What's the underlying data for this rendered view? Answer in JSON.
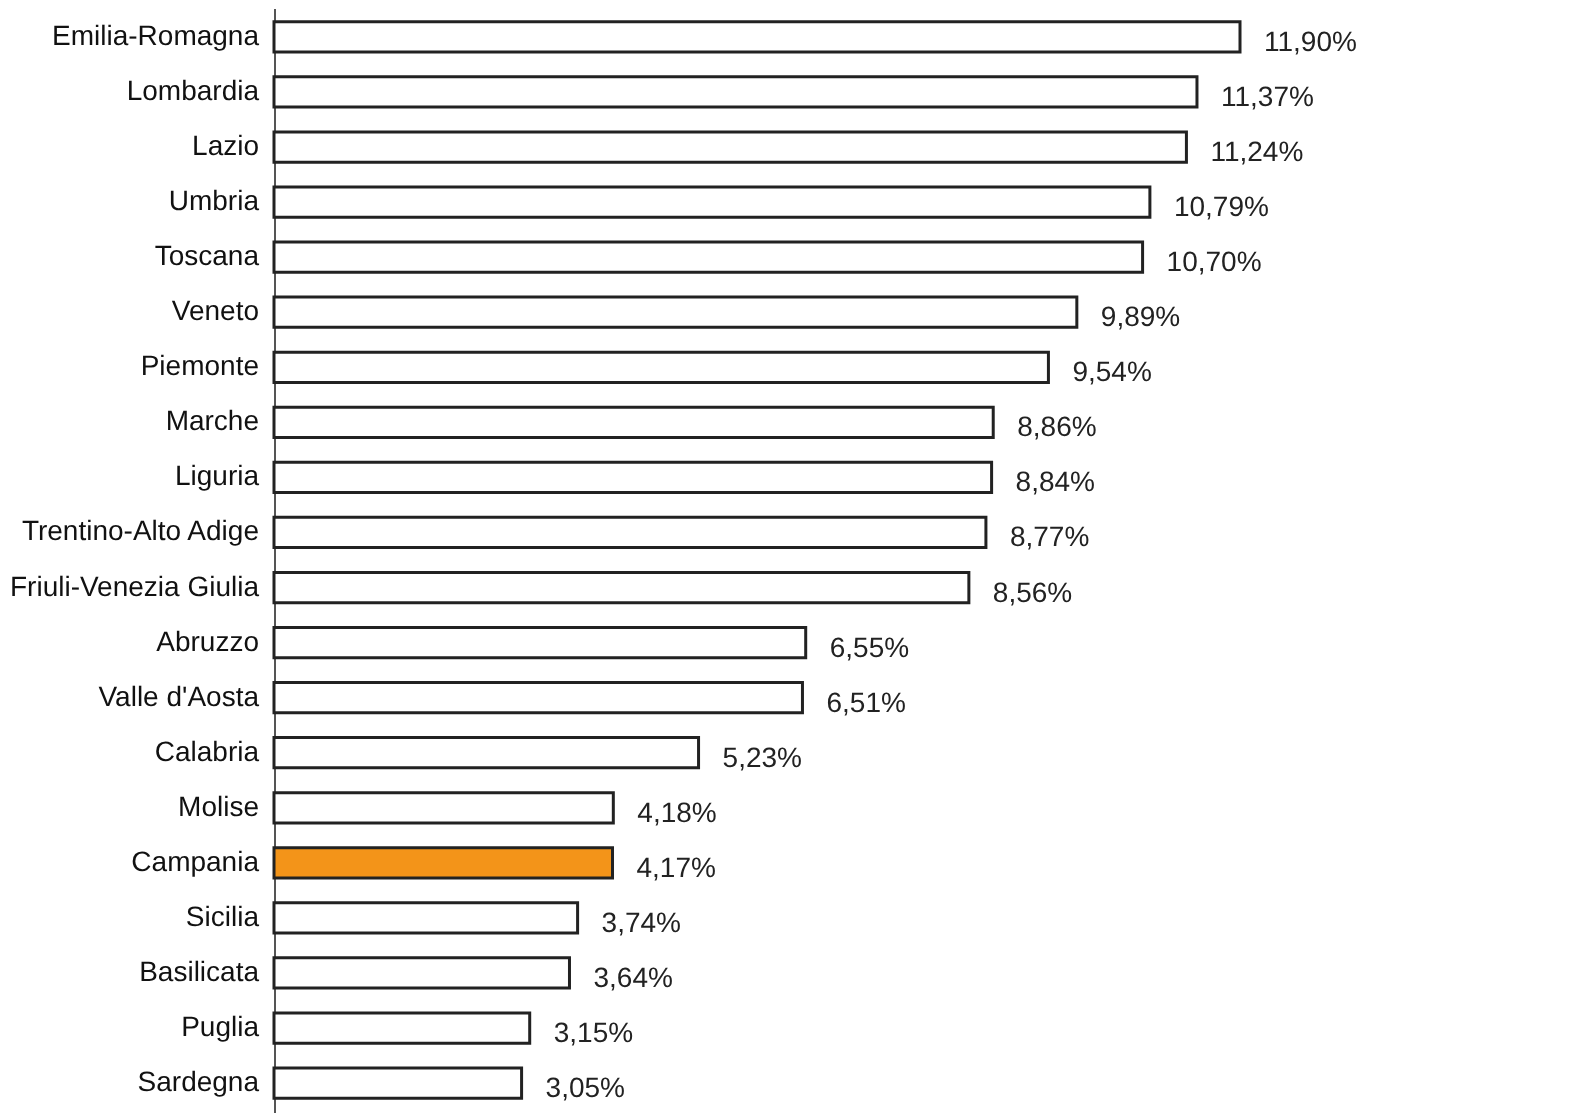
{
  "chart_data": {
    "type": "bar",
    "orientation": "horizontal",
    "categories": [
      "Emilia-Romagna",
      "Lombardia",
      "Lazio",
      "Umbria",
      "Toscana",
      "Veneto",
      "Piemonte",
      "Marche",
      "Liguria",
      "Trentino-Alto Adige",
      "Friuli-Venezia Giulia",
      "Abruzzo",
      "Valle d'Aosta",
      "Calabria",
      "Molise",
      "Campania",
      "Sicilia",
      "Basilicata",
      "Puglia",
      "Sardegna"
    ],
    "values": [
      11.9,
      11.37,
      11.24,
      10.79,
      10.7,
      9.89,
      9.54,
      8.86,
      8.84,
      8.77,
      8.56,
      6.55,
      6.51,
      5.23,
      4.18,
      4.17,
      3.74,
      3.64,
      3.15,
      3.05
    ],
    "value_labels": [
      "11,90%",
      "11,37%",
      "11,24%",
      "10,79%",
      "10,70%",
      "9,89%",
      "9,54%",
      "8,86%",
      "8,84%",
      "8,77%",
      "8,56%",
      "6,55%",
      "6,51%",
      "5,23%",
      "4,18%",
      "4,17%",
      "3,74%",
      "3,64%",
      "3,15%",
      "3,05%"
    ],
    "colors": [
      "#ffffff",
      "#ffffff",
      "#ffffff",
      "#ffffff",
      "#ffffff",
      "#ffffff",
      "#ffffff",
      "#ffffff",
      "#ffffff",
      "#ffffff",
      "#ffffff",
      "#ffffff",
      "#ffffff",
      "#ffffff",
      "#ffffff",
      "#f39419",
      "#ffffff",
      "#ffffff",
      "#ffffff",
      "#ffffff"
    ],
    "grid": false
  }
}
